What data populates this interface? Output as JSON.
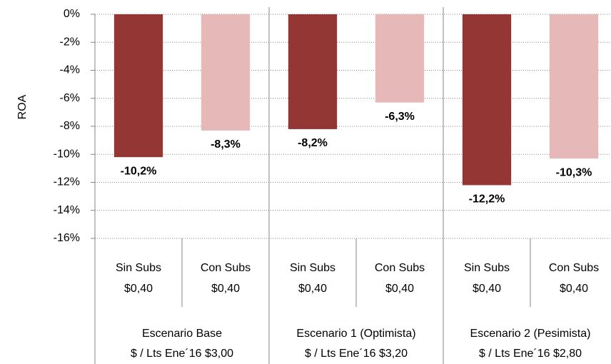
{
  "chart_data": {
    "type": "bar",
    "y_label": "ROA",
    "categories": [
      [
        "Sin Subs",
        "$0,40"
      ],
      [
        "Con Subs",
        "$0,40"
      ],
      [
        "Sin Subs",
        "$0,40"
      ],
      [
        "Con Subs",
        "$0,40"
      ],
      [
        "Sin Subs",
        "$0,40"
      ],
      [
        "Con Subs",
        "$0,40"
      ]
    ],
    "groups": [
      [
        "Escenario Base",
        "$ / Lts Ene´16 $3,00"
      ],
      [
        "Escenario 1 (Optimista)",
        "$ / Lts Ene´16 $3,20"
      ],
      [
        "Escenario 2 (Pesimista)",
        "$ / Lts Ene´16 $2,80"
      ]
    ],
    "values": [
      -10.2,
      -8.3,
      -8.2,
      -6.3,
      -12.2,
      -10.3
    ],
    "value_labels": [
      "-10,2%",
      "-8,3%",
      "-8,2%",
      "-6,3%",
      "-12,2%",
      "-10,3%"
    ],
    "colors": [
      "#943634",
      "#e6b9b8",
      "#943634",
      "#e6b9b8",
      "#943634",
      "#e6b9b8"
    ],
    "ylim": [
      -16,
      0
    ],
    "yticks": [
      {
        "value": 0,
        "label": "0%"
      },
      {
        "value": -2,
        "label": "-2%"
      },
      {
        "value": -4,
        "label": "-4%"
      },
      {
        "value": -6,
        "label": "-6%"
      },
      {
        "value": -8,
        "label": "-8%"
      },
      {
        "value": -10,
        "label": "-10%"
      },
      {
        "value": -12,
        "label": "-12%"
      },
      {
        "value": -14,
        "label": "-14%"
      },
      {
        "value": -16,
        "label": "-16%"
      }
    ],
    "grid": true
  }
}
